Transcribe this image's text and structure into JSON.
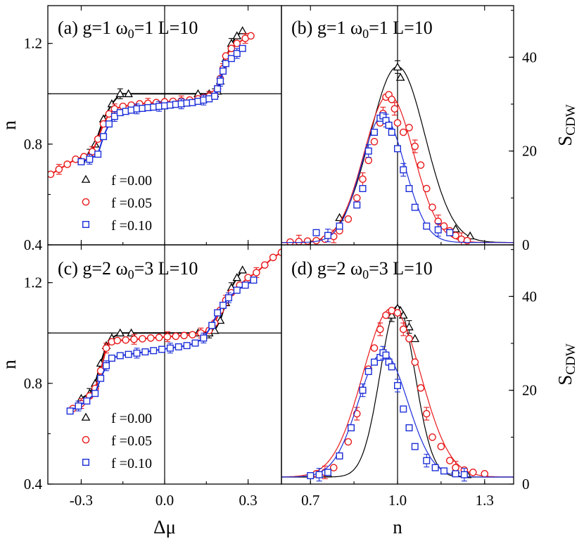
{
  "chart_data": [
    {
      "panel": "a",
      "type": "line",
      "title": "(a) g=1 ω0=1 L=10",
      "title_parts": {
        "label": "(a) g=1 ω",
        "sub": "0",
        "rest": "=1 L=10"
      },
      "xlabel": "",
      "ylabel": "n",
      "xlim": [
        -0.42,
        0.42
      ],
      "ylim": [
        0.4,
        1.35
      ],
      "xticks": [
        -0.3,
        0.0,
        0.3
      ],
      "xtick_labels": [
        "",
        "",
        ""
      ],
      "yticks": [
        0.4,
        0.8,
        1.2
      ],
      "ytick_labels": [
        "0.4",
        "0.8",
        "1.2"
      ],
      "reference_lines": {
        "x": 0.0,
        "y": 1.0
      },
      "legend": [
        "f =0.00",
        "f =0.05",
        "f =0.10"
      ],
      "series": [
        {
          "name": "f =0.00",
          "color": "#000000",
          "marker": "triangle",
          "x": [
            -0.3,
            -0.27,
            -0.25,
            -0.22,
            -0.19,
            -0.16,
            -0.13,
            0.12,
            0.16,
            0.18,
            0.19,
            0.2,
            0.22,
            0.24,
            0.26,
            0.28
          ],
          "y": [
            0.74,
            0.76,
            0.8,
            0.9,
            0.96,
            1.0,
            1.0,
            1.0,
            1.0,
            1.0,
            1.01,
            1.05,
            1.14,
            1.2,
            1.23,
            1.25
          ]
        },
        {
          "name": "f =0.05",
          "color": "#e8191b",
          "marker": "circle",
          "x": [
            -0.41,
            -0.38,
            -0.35,
            -0.32,
            -0.29,
            -0.26,
            -0.24,
            -0.22,
            -0.2,
            -0.18,
            -0.15,
            -0.12,
            -0.09,
            -0.06,
            -0.03,
            0.0,
            0.03,
            0.06,
            0.09,
            0.12,
            0.14,
            0.16,
            0.18,
            0.19,
            0.2,
            0.21,
            0.22,
            0.24,
            0.26,
            0.29,
            0.31
          ],
          "y": [
            0.68,
            0.7,
            0.72,
            0.74,
            0.75,
            0.77,
            0.82,
            0.88,
            0.92,
            0.94,
            0.95,
            0.955,
            0.96,
            0.962,
            0.965,
            0.968,
            0.97,
            0.972,
            0.975,
            0.98,
            0.985,
            0.99,
            1.0,
            1.02,
            1.06,
            1.1,
            1.15,
            1.18,
            1.2,
            1.22,
            1.23
          ]
        },
        {
          "name": "f =0.10",
          "color": "#1c2fd8",
          "marker": "square",
          "x": [
            -0.3,
            -0.27,
            -0.24,
            -0.22,
            -0.2,
            -0.18,
            -0.16,
            -0.14,
            -0.12,
            -0.1,
            -0.08,
            -0.06,
            -0.04,
            -0.02,
            0.0,
            0.02,
            0.04,
            0.06,
            0.08,
            0.1,
            0.12,
            0.14,
            0.16,
            0.18,
            0.19,
            0.2,
            0.21,
            0.22,
            0.24,
            0.26,
            0.28
          ],
          "y": [
            0.73,
            0.74,
            0.76,
            0.83,
            0.88,
            0.91,
            0.925,
            0.93,
            0.935,
            0.94,
            0.942,
            0.945,
            0.947,
            0.95,
            0.952,
            0.955,
            0.958,
            0.96,
            0.963,
            0.965,
            0.97,
            0.975,
            0.98,
            0.99,
            1.02,
            1.05,
            1.09,
            1.12,
            1.14,
            1.16,
            1.18
          ]
        }
      ]
    },
    {
      "panel": "b",
      "type": "scatter",
      "title": "(b) g=1 ω0=1 L=10",
      "title_parts": {
        "label": "(b) g=1 ω",
        "sub": "0",
        "rest": "=1 L=10"
      },
      "xlabel": "",
      "ylabel": "S_CDW",
      "ylabel_parts": {
        "main": "S",
        "sub": "CDW"
      },
      "xlim": [
        0.6,
        1.4
      ],
      "ylim": [
        0,
        51
      ],
      "xticks": [
        0.7,
        1.0,
        1.3
      ],
      "xtick_labels": [
        "",
        "",
        ""
      ],
      "yticks": [
        0,
        20,
        40
      ],
      "ytick_labels": [
        "0",
        "20",
        "40"
      ],
      "reference_lines": {
        "x": 1.0
      },
      "series": [
        {
          "name": "f =0.00",
          "color": "#000000",
          "marker": "triangle",
          "x": [
            0.8,
            1.0,
            1.01,
            1.2,
            1.25
          ],
          "y": [
            5.8,
            37.9,
            35.7,
            3.4,
            1.9
          ],
          "fit": {
            "A": 37.5,
            "mu": 1.0,
            "sigma": 0.095,
            "c": 0.5
          }
        },
        {
          "name": "f =0.05",
          "color": "#e8191b",
          "marker": "circle",
          "x": [
            0.63,
            0.66,
            0.69,
            0.72,
            0.75,
            0.78,
            0.8,
            0.83,
            0.86,
            0.88,
            0.9,
            0.92,
            0.94,
            0.95,
            0.96,
            0.97,
            0.98,
            0.99,
            1.0,
            1.02,
            1.04,
            1.06,
            1.08,
            1.1,
            1.12,
            1.14,
            1.16,
            1.18,
            1.2,
            1.22,
            1.24
          ],
          "y": [
            0.6,
            0.7,
            0.8,
            0.9,
            1.2,
            1.8,
            3.0,
            5.5,
            10.0,
            14.0,
            18.0,
            22.0,
            26.0,
            28.0,
            31.5,
            32.0,
            31.0,
            29.0,
            26.0,
            24.0,
            25.0,
            21.0,
            17.0,
            12.0,
            8.0,
            5.0,
            4.0,
            3.0,
            2.0,
            1.2,
            0.9
          ],
          "fit": {
            "A": 31.5,
            "mu": 0.97,
            "sigma": 0.085,
            "c": 0.5
          }
        },
        {
          "name": "f =0.10",
          "color": "#1c2fd8",
          "marker": "square",
          "x": [
            0.72,
            0.76,
            0.8,
            0.86,
            0.88,
            0.9,
            0.92,
            0.94,
            0.95,
            0.96,
            0.97,
            0.98,
            1.0,
            1.02,
            1.04,
            1.06,
            1.1,
            1.14,
            1.18
          ],
          "y": [
            2.6,
            2.0,
            4.0,
            8.5,
            12.0,
            20.0,
            24.0,
            27.0,
            27.5,
            26.5,
            25.5,
            24.0,
            20.5,
            16.0,
            12.0,
            8.0,
            4.0,
            3.2,
            2.6
          ],
          "fit": {
            "A": 27.0,
            "mu": 0.95,
            "sigma": 0.075,
            "c": 0.5
          }
        }
      ]
    },
    {
      "panel": "c",
      "type": "line",
      "title": "(c) g=2 ω0=3 L=10",
      "title_parts": {
        "label": "(c) g=2 ω",
        "sub": "0",
        "rest": "=3 L=10"
      },
      "xlabel": "Δμ",
      "ylabel": "n",
      "xlim": [
        -0.42,
        0.42
      ],
      "ylim": [
        0.4,
        1.35
      ],
      "xticks": [
        -0.3,
        0.0,
        0.3
      ],
      "xtick_labels": [
        "-0.3",
        "0.0",
        "0.3"
      ],
      "yticks": [
        0.4,
        0.8,
        1.2
      ],
      "ytick_labels": [
        "0.4",
        "0.8",
        "1.2"
      ],
      "reference_lines": {
        "x": 0.0,
        "y": 1.0
      },
      "legend": [
        "f =0.00",
        "f =0.05",
        "f =0.10"
      ],
      "series": [
        {
          "name": "f =0.00",
          "color": "#000000",
          "marker": "triangle",
          "x": [
            -0.3,
            -0.27,
            -0.25,
            -0.23,
            -0.21,
            -0.19,
            -0.16,
            -0.12,
            0.12,
            0.16,
            0.18,
            0.2,
            0.22,
            0.24,
            0.26,
            0.28
          ],
          "y": [
            0.74,
            0.76,
            0.8,
            0.88,
            0.95,
            0.98,
            1.0,
            1.0,
            1.0,
            1.0,
            1.01,
            1.05,
            1.12,
            1.18,
            1.22,
            1.25
          ]
        },
        {
          "name": "f =0.05",
          "color": "#e8191b",
          "marker": "circle",
          "x": [
            -0.33,
            -0.3,
            -0.27,
            -0.25,
            -0.23,
            -0.21,
            -0.19,
            -0.17,
            -0.14,
            -0.11,
            -0.08,
            -0.05,
            -0.02,
            0.01,
            0.04,
            0.07,
            0.1,
            0.13,
            0.16,
            0.18,
            0.2,
            0.22,
            0.24,
            0.27,
            0.3,
            0.33,
            0.36,
            0.39,
            0.42
          ],
          "y": [
            0.7,
            0.72,
            0.75,
            0.78,
            0.85,
            0.94,
            0.965,
            0.97,
            0.972,
            0.975,
            0.977,
            0.98,
            0.982,
            0.985,
            0.987,
            0.99,
            0.993,
            1.0,
            1.01,
            1.04,
            1.09,
            1.13,
            1.16,
            1.19,
            1.22,
            1.24,
            1.27,
            1.3,
            1.32
          ]
        },
        {
          "name": "f =0.10",
          "color": "#1c2fd8",
          "marker": "square",
          "x": [
            -0.34,
            -0.31,
            -0.28,
            -0.25,
            -0.23,
            -0.21,
            -0.19,
            -0.16,
            -0.13,
            -0.1,
            -0.07,
            -0.04,
            -0.01,
            0.02,
            0.05,
            0.08,
            0.11,
            0.14,
            0.17,
            0.19,
            0.21,
            0.23,
            0.26,
            0.29,
            0.32
          ],
          "y": [
            0.69,
            0.71,
            0.73,
            0.76,
            0.82,
            0.87,
            0.9,
            0.91,
            0.915,
            0.92,
            0.925,
            0.93,
            0.935,
            0.94,
            0.945,
            0.95,
            0.96,
            0.98,
            1.03,
            1.08,
            1.11,
            1.14,
            1.17,
            1.19,
            1.21
          ]
        }
      ]
    },
    {
      "panel": "d",
      "type": "scatter",
      "title": "(d) g=2 ω0=3 L=10",
      "title_parts": {
        "label": "(d) g=2 ω",
        "sub": "0",
        "rest": "=3 L=10"
      },
      "xlabel": "n",
      "ylabel": "S_CDW",
      "ylabel_parts": {
        "main": "S",
        "sub": "CDW"
      },
      "xlim": [
        0.6,
        1.4
      ],
      "ylim": [
        0,
        51
      ],
      "xticks": [
        0.7,
        1.0,
        1.3
      ],
      "xtick_labels": [
        "0.7",
        "1.0",
        "1.3"
      ],
      "yticks": [
        0,
        20,
        40
      ],
      "ytick_labels": [
        "0",
        "20",
        "40"
      ],
      "reference_lines": {
        "x": 1.0
      },
      "series": [
        {
          "name": "f =0.00",
          "color": "#000000",
          "marker": "triangle",
          "x": [
            0.76,
            0.98,
            1.0,
            1.01,
            1.02,
            1.04,
            1.06,
            1.2,
            1.24
          ],
          "y": [
            2.2,
            36.0,
            37.5,
            37.0,
            36.0,
            33.5,
            31.0,
            3.0,
            2.0
          ],
          "fit": {
            "A": 36.5,
            "mu": 1.0,
            "sigma": 0.06,
            "c": 1.5
          }
        },
        {
          "name": "f =0.05",
          "color": "#e8191b",
          "marker": "circle",
          "x": [
            0.72,
            0.75,
            0.78,
            0.8,
            0.83,
            0.86,
            0.88,
            0.9,
            0.92,
            0.94,
            0.96,
            0.98,
            1.0,
            1.02,
            1.04,
            1.06,
            1.08,
            1.1,
            1.12,
            1.15,
            1.18,
            1.2,
            1.23,
            1.26,
            1.3
          ],
          "y": [
            2.2,
            2.5,
            3.5,
            6.0,
            9.0,
            15.0,
            20.0,
            24.5,
            29.0,
            33.0,
            36.0,
            37.0,
            36.5,
            33.0,
            31.0,
            26.0,
            20.5,
            15.0,
            10.0,
            8.0,
            5.0,
            3.5,
            3.0,
            2.5,
            2.2
          ],
          "fit": {
            "A": 36.0,
            "mu": 0.98,
            "sigma": 0.1,
            "c": 1.5
          }
        },
        {
          "name": "f =0.10",
          "color": "#1c2fd8",
          "marker": "square",
          "x": [
            0.7,
            0.73,
            0.76,
            0.8,
            0.84,
            0.88,
            0.9,
            0.92,
            0.94,
            0.95,
            0.96,
            0.97,
            0.98,
            1.0,
            1.02,
            1.04,
            1.06,
            1.1,
            1.13,
            1.16,
            1.2,
            1.23
          ],
          "y": [
            1.8,
            2.0,
            2.5,
            6.0,
            12.0,
            20.0,
            24.0,
            26.0,
            27.0,
            28.0,
            27.5,
            26.0,
            25.0,
            21.0,
            16.0,
            12.0,
            8.0,
            5.0,
            3.5,
            2.8,
            2.2,
            2.0
          ],
          "fit": {
            "A": 26.5,
            "mu": 0.95,
            "sigma": 0.085,
            "c": 1.5
          }
        }
      ]
    }
  ]
}
